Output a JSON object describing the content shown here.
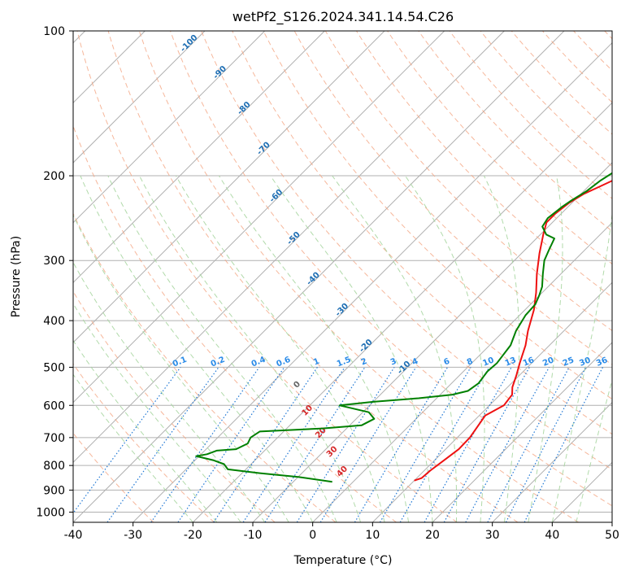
{
  "chart_data": {
    "type": "line",
    "title": "wetPf2_S126.2024.341.14.54.C26",
    "xlabel": "Temperature (°C)",
    "ylabel": "Pressure (hPa)",
    "xlim": [
      -40,
      50
    ],
    "ylim": [
      1050,
      100
    ],
    "y_scale": "log",
    "grid": true,
    "x_ticks": [
      "-40",
      "-30",
      "-20",
      "-10",
      "0",
      "10",
      "20",
      "30",
      "40",
      "50"
    ],
    "y_ticks": [
      "100",
      "200",
      "300",
      "400",
      "500",
      "600",
      "700",
      "800",
      "900",
      "1000"
    ],
    "series": [
      {
        "role": "temperature",
        "color": "#ee1111",
        "points": [
          [
            10.0,
            860
          ],
          [
            10.8,
            850
          ],
          [
            11.0,
            820
          ],
          [
            11.6,
            780
          ],
          [
            12.2,
            740
          ],
          [
            12.1,
            700
          ],
          [
            11.5,
            660
          ],
          [
            11.0,
            630
          ],
          [
            12.4,
            600
          ],
          [
            12.0,
            570
          ],
          [
            10.8,
            550
          ],
          [
            9.5,
            520
          ],
          [
            8.0,
            490
          ],
          [
            6.0,
            450
          ],
          [
            4.0,
            420
          ],
          [
            1.5,
            380
          ],
          [
            -1.0,
            350
          ],
          [
            -4.0,
            320
          ],
          [
            -7.0,
            290
          ],
          [
            -9.5,
            265
          ],
          [
            -11.0,
            250
          ],
          [
            -11.0,
            240
          ],
          [
            -10.5,
            228
          ],
          [
            -9.5,
            218
          ],
          [
            -8.0,
            210
          ],
          [
            -6.0,
            200
          ],
          [
            -4.0,
            190
          ],
          [
            -2.0,
            180
          ],
          [
            -0.5,
            170
          ],
          [
            1.0,
            160
          ],
          [
            3.0,
            150
          ],
          [
            5.0,
            140
          ],
          [
            6.0,
            130
          ],
          [
            7.0,
            120
          ],
          [
            8.5,
            115
          ],
          [
            10.0,
            110
          ],
          [
            11.0,
            105
          ],
          [
            12.0,
            100
          ]
        ]
      },
      {
        "role": "dewpoint",
        "color": "#008000",
        "points": [
          [
            -3.5,
            865
          ],
          [
            -10.0,
            845
          ],
          [
            -17.0,
            830
          ],
          [
            -23.0,
            815
          ],
          [
            -24.5,
            795
          ],
          [
            -27.0,
            780
          ],
          [
            -30.5,
            765
          ],
          [
            -29.0,
            758
          ],
          [
            -28.0,
            745
          ],
          [
            -25.0,
            740
          ],
          [
            -24.0,
            720
          ],
          [
            -24.5,
            700
          ],
          [
            -24.0,
            680
          ],
          [
            -14.0,
            670
          ],
          [
            -8.0,
            660
          ],
          [
            -7.0,
            640
          ],
          [
            -9.0,
            620
          ],
          [
            -15.0,
            600
          ],
          [
            -10.0,
            590
          ],
          [
            -3.0,
            580
          ],
          [
            2.0,
            570
          ],
          [
            4.0,
            560
          ],
          [
            4.5,
            540
          ],
          [
            4.0,
            510
          ],
          [
            4.2,
            490
          ],
          [
            3.5,
            450
          ],
          [
            2.0,
            420
          ],
          [
            1.0,
            390
          ],
          [
            0.8,
            370
          ],
          [
            0.0,
            355
          ],
          [
            -1.0,
            340
          ],
          [
            -3.0,
            320
          ],
          [
            -5.0,
            300
          ],
          [
            -6.0,
            285
          ],
          [
            -7.0,
            270
          ],
          [
            -9.0,
            265
          ],
          [
            -11.0,
            255
          ],
          [
            -11.5,
            245
          ],
          [
            -11.0,
            232
          ],
          [
            -10.5,
            225
          ],
          [
            -9.5,
            215
          ],
          [
            -9.0,
            205
          ],
          [
            -8.0,
            195
          ],
          [
            -6.5,
            185
          ],
          [
            -5.0,
            175
          ],
          [
            -4.0,
            165
          ],
          [
            -3.5,
            155
          ],
          [
            -3.5,
            145
          ],
          [
            -3.0,
            135
          ],
          [
            -2.0,
            125
          ],
          [
            -2.0,
            120
          ],
          [
            -1.0,
            115
          ],
          [
            0.5,
            110
          ],
          [
            2.0,
            105
          ],
          [
            3.0,
            100
          ]
        ]
      }
    ],
    "dry_adiabat_labels": [
      "-100",
      "-90",
      "-80",
      "-70",
      "-60",
      "-50",
      "-40",
      "-30",
      "-20",
      "-10"
    ],
    "moist_adiabat_labels": [
      "0",
      "10",
      "20",
      "30",
      "40"
    ],
    "mixing_ratio_labels": [
      "0.1",
      "0.2",
      "0.4",
      "0.6",
      "1",
      "1.5",
      "2",
      "3",
      "4",
      "6",
      "8",
      "10",
      "13",
      "16",
      "20",
      "25",
      "30",
      "36"
    ]
  }
}
